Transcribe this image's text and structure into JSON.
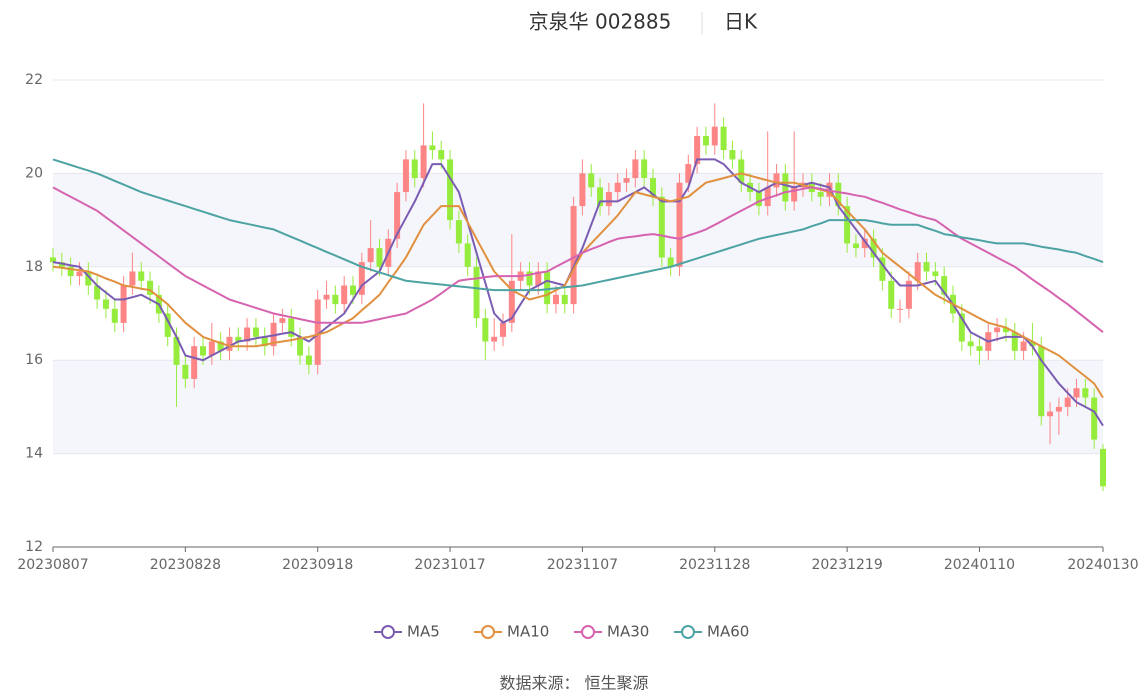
{
  "chart_data": {
    "type": "candlestick",
    "title": "京泉华 002885",
    "subtitle": "日K",
    "source": "数据来源： 恒生聚源",
    "up_color": "#fd8585",
    "down_color": "#95ec3c",
    "categories": [
      "20230807",
      null,
      null,
      null,
      null,
      null,
      null,
      null,
      null,
      null,
      null,
      null,
      null,
      null,
      null,
      "20230828",
      null,
      null,
      null,
      null,
      null,
      null,
      null,
      null,
      null,
      null,
      null,
      null,
      null,
      null,
      "20230918",
      null,
      null,
      null,
      null,
      null,
      null,
      null,
      null,
      null,
      null,
      null,
      null,
      null,
      null,
      "20231017",
      null,
      null,
      null,
      null,
      null,
      null,
      null,
      null,
      null,
      null,
      null,
      null,
      null,
      null,
      "20231107",
      null,
      null,
      null,
      null,
      null,
      null,
      null,
      null,
      null,
      null,
      null,
      null,
      null,
      null,
      "20231128",
      null,
      null,
      null,
      null,
      null,
      null,
      null,
      null,
      null,
      null,
      null,
      null,
      null,
      null,
      "20231219",
      null,
      null,
      null,
      null,
      null,
      null,
      null,
      null,
      null,
      null,
      null,
      null,
      null,
      null,
      "20240110",
      null,
      null,
      null,
      null,
      null,
      null,
      null,
      null,
      null,
      null,
      null,
      null,
      null,
      "20240130"
    ],
    "open": [
      18.2,
      18.1,
      18.0,
      17.8,
      17.9,
      17.6,
      17.3,
      17.1,
      16.8,
      17.6,
      17.9,
      17.7,
      17.4,
      17.0,
      16.5,
      15.9,
      15.6,
      16.3,
      16.1,
      16.4,
      16.2,
      16.5,
      16.4,
      16.7,
      16.5,
      16.3,
      16.8,
      16.9,
      16.5,
      16.1,
      15.9,
      17.3,
      17.4,
      17.2,
      17.6,
      17.4,
      18.1,
      18.4,
      18.0,
      18.6,
      19.6,
      20.3,
      19.9,
      20.6,
      20.5,
      20.3,
      19.0,
      18.5,
      18.0,
      16.9,
      16.4,
      16.5,
      16.8,
      17.7,
      17.9,
      17.6,
      17.9,
      17.2,
      17.4,
      17.2,
      19.3,
      20.0,
      19.7,
      19.3,
      19.6,
      19.8,
      19.9,
      20.3,
      19.9,
      19.5,
      18.2,
      18.0,
      19.8,
      20.2,
      20.8,
      20.6,
      21.0,
      20.5,
      20.3,
      19.8,
      19.6,
      19.3,
      19.7,
      20.0,
      19.4,
      19.7,
      19.8,
      19.6,
      19.5,
      19.8,
      19.3,
      18.5,
      18.4,
      18.6,
      18.2,
      17.7,
      17.1,
      17.1,
      17.7,
      18.1,
      17.9,
      17.8,
      17.4,
      17.0,
      16.4,
      16.3,
      16.2,
      16.6,
      16.7,
      16.6,
      16.2,
      16.4,
      16.3,
      14.8,
      14.9,
      15.0,
      15.2,
      15.4,
      15.2,
      14.1
    ],
    "close": [
      18.1,
      18.0,
      17.8,
      17.9,
      17.6,
      17.3,
      17.1,
      16.8,
      17.6,
      17.9,
      17.7,
      17.4,
      17.0,
      16.5,
      15.9,
      15.6,
      16.3,
      16.1,
      16.4,
      16.2,
      16.5,
      16.4,
      16.7,
      16.5,
      16.3,
      16.8,
      16.9,
      16.5,
      16.1,
      15.9,
      17.3,
      17.4,
      17.2,
      17.6,
      17.4,
      18.1,
      18.4,
      18.0,
      18.6,
      19.6,
      20.3,
      19.9,
      20.6,
      20.5,
      20.3,
      19.0,
      18.5,
      18.0,
      16.9,
      16.4,
      16.5,
      16.8,
      17.7,
      17.9,
      17.6,
      17.9,
      17.2,
      17.4,
      17.2,
      19.3,
      20.0,
      19.7,
      19.3,
      19.6,
      19.8,
      19.9,
      20.3,
      19.9,
      19.5,
      18.2,
      18.0,
      19.8,
      20.2,
      20.8,
      20.6,
      21.0,
      20.5,
      20.3,
      19.8,
      19.6,
      19.3,
      19.7,
      20.0,
      19.4,
      19.7,
      19.8,
      19.6,
      19.5,
      19.8,
      19.3,
      18.5,
      18.4,
      18.6,
      18.2,
      17.7,
      17.1,
      17.1,
      17.7,
      18.1,
      17.9,
      17.8,
      17.4,
      17.0,
      16.4,
      16.3,
      16.2,
      16.6,
      16.7,
      16.6,
      16.2,
      16.4,
      16.3,
      14.8,
      14.9,
      15.0,
      15.2,
      15.4,
      15.2,
      14.3,
      13.3
    ],
    "low": [
      17.9,
      17.8,
      17.6,
      17.6,
      17.4,
      17.1,
      16.9,
      16.6,
      16.6,
      17.4,
      17.5,
      17.2,
      16.8,
      16.3,
      15.0,
      15.4,
      15.4,
      15.9,
      15.9,
      16.0,
      16.0,
      16.2,
      16.2,
      16.3,
      16.1,
      16.1,
      16.6,
      16.3,
      15.9,
      15.7,
      15.7,
      17.1,
      17.0,
      17.0,
      17.2,
      17.2,
      17.9,
      17.8,
      17.8,
      18.4,
      19.4,
      19.7,
      19.7,
      20.3,
      20.1,
      18.8,
      18.3,
      17.8,
      16.7,
      16.0,
      16.2,
      16.3,
      16.6,
      17.5,
      17.4,
      17.4,
      17.0,
      17.0,
      17.0,
      17.0,
      19.1,
      19.5,
      19.1,
      19.1,
      19.4,
      19.6,
      19.7,
      19.7,
      19.3,
      18.0,
      17.8,
      17.8,
      19.6,
      20.0,
      20.4,
      20.4,
      20.3,
      20.1,
      19.6,
      19.4,
      19.1,
      19.1,
      19.5,
      19.2,
      19.2,
      19.5,
      19.4,
      19.3,
      19.3,
      19.1,
      18.3,
      18.2,
      18.2,
      18.0,
      17.5,
      16.9,
      16.8,
      16.9,
      17.5,
      17.7,
      17.6,
      17.2,
      16.8,
      16.2,
      16.1,
      15.9,
      16.0,
      16.4,
      16.4,
      16.0,
      16.0,
      16.1,
      14.6,
      14.2,
      14.4,
      14.8,
      15.0,
      15.0,
      14.1,
      13.2
    ],
    "high": [
      18.4,
      18.3,
      18.2,
      18.1,
      18.1,
      17.8,
      17.5,
      17.3,
      17.8,
      18.3,
      18.1,
      17.9,
      17.6,
      17.2,
      16.7,
      16.1,
      16.5,
      16.5,
      16.8,
      16.6,
      16.7,
      16.7,
      16.9,
      16.9,
      16.7,
      17.0,
      17.1,
      17.1,
      16.7,
      16.3,
      17.5,
      17.7,
      17.6,
      17.8,
      17.8,
      18.3,
      19.0,
      18.6,
      18.8,
      19.8,
      20.5,
      20.5,
      21.5,
      20.9,
      20.7,
      20.5,
      19.2,
      18.7,
      18.2,
      17.1,
      16.9,
      17.0,
      18.7,
      18.1,
      18.1,
      18.1,
      18.1,
      17.6,
      17.6,
      19.5,
      20.3,
      20.2,
      19.9,
      19.8,
      20.0,
      20.1,
      20.5,
      20.5,
      20.1,
      19.7,
      18.4,
      20.0,
      20.4,
      21.0,
      21.0,
      21.5,
      21.2,
      20.7,
      20.5,
      20.0,
      19.8,
      20.9,
      20.2,
      20.2,
      20.9,
      20.0,
      20.0,
      19.8,
      20.0,
      20.0,
      19.5,
      18.7,
      18.8,
      18.8,
      18.4,
      17.9,
      17.3,
      17.9,
      18.3,
      18.3,
      18.1,
      18.0,
      17.6,
      17.2,
      16.6,
      16.5,
      16.8,
      16.9,
      16.9,
      16.8,
      16.6,
      16.8,
      16.5,
      15.1,
      15.2,
      15.4,
      15.6,
      15.6,
      15.4,
      14.2
    ],
    "series": [
      {
        "name": "MA5",
        "color": "#7b5cb3",
        "values": [
          18.1,
          18.07,
          18.03,
          18.0,
          17.8,
          17.6,
          17.45,
          17.3,
          17.3,
          17.35,
          17.4,
          17.3,
          17.2,
          16.85,
          16.5,
          16.1,
          16.05,
          16.0,
          16.1,
          16.2,
          16.3,
          16.4,
          16.43,
          16.47,
          16.5,
          16.53,
          16.57,
          16.6,
          16.5,
          16.4,
          16.55,
          16.7,
          16.85,
          17.0,
          17.3,
          17.6,
          17.75,
          17.9,
          18.3,
          18.7,
          19.05,
          19.4,
          19.8,
          20.2,
          20.2,
          19.9,
          19.6,
          18.95,
          18.3,
          17.65,
          17.0,
          16.8,
          16.9,
          17.2,
          17.5,
          17.6,
          17.7,
          17.65,
          17.6,
          18.0,
          18.4,
          18.9,
          19.4,
          19.4,
          19.4,
          19.5,
          19.6,
          19.7,
          19.55,
          19.4,
          19.4,
          19.4,
          19.7,
          20.3,
          20.3,
          20.3,
          20.2,
          20.0,
          19.8,
          19.7,
          19.6,
          19.7,
          19.8,
          19.75,
          19.7,
          19.75,
          19.8,
          19.75,
          19.7,
          19.3,
          19.05,
          18.8,
          18.55,
          18.3,
          18.05,
          17.8,
          17.6,
          17.6,
          17.6,
          17.65,
          17.7,
          17.45,
          17.2,
          16.9,
          16.6,
          16.5,
          16.4,
          16.45,
          16.5,
          16.5,
          16.5,
          16.3,
          16.0,
          15.75,
          15.5,
          15.3,
          15.1,
          15.0,
          14.9,
          14.6
        ]
      },
      {
        "name": "MA10",
        "color": "#e0903f",
        "values": [
          18.0,
          17.98,
          17.95,
          17.93,
          17.9,
          17.83,
          17.75,
          17.68,
          17.6,
          17.57,
          17.53,
          17.5,
          17.35,
          17.2,
          17.0,
          16.8,
          16.65,
          16.5,
          16.43,
          16.37,
          16.3,
          16.3,
          16.3,
          16.3,
          16.33,
          16.37,
          16.4,
          16.43,
          16.47,
          16.5,
          16.55,
          16.6,
          16.7,
          16.8,
          16.9,
          17.07,
          17.23,
          17.4,
          17.67,
          17.93,
          18.2,
          18.55,
          18.9,
          19.1,
          19.3,
          19.3,
          19.3,
          18.95,
          18.6,
          18.25,
          17.9,
          17.7,
          17.5,
          17.4,
          17.3,
          17.35,
          17.4,
          17.5,
          17.6,
          17.95,
          18.3,
          18.5,
          18.7,
          18.9,
          19.1,
          19.35,
          19.6,
          19.55,
          19.5,
          19.45,
          19.4,
          19.45,
          19.5,
          19.65,
          19.8,
          19.85,
          19.9,
          19.95,
          20.0,
          19.95,
          19.9,
          19.85,
          19.8,
          19.8,
          19.8,
          19.75,
          19.7,
          19.65,
          19.6,
          19.4,
          19.2,
          19.0,
          18.8,
          18.55,
          18.3,
          18.15,
          18.0,
          17.85,
          17.7,
          17.55,
          17.4,
          17.3,
          17.2,
          17.1,
          17.0,
          16.9,
          16.8,
          16.75,
          16.7,
          16.6,
          16.5,
          16.4,
          16.3,
          16.2,
          16.1,
          15.95,
          15.8,
          15.65,
          15.5,
          15.2
        ]
      },
      {
        "name": "MA30",
        "color": "#d663b0",
        "values": [
          19.7,
          19.6,
          19.5,
          19.4,
          19.3,
          19.2,
          19.06,
          18.92,
          18.78,
          18.64,
          18.5,
          18.36,
          18.22,
          18.08,
          17.94,
          17.8,
          17.7,
          17.6,
          17.5,
          17.4,
          17.3,
          17.24,
          17.18,
          17.12,
          17.06,
          17.0,
          16.96,
          16.92,
          16.88,
          16.84,
          16.8,
          16.8,
          16.8,
          16.8,
          16.8,
          16.8,
          16.84,
          16.88,
          16.92,
          16.96,
          17.0,
          17.1,
          17.2,
          17.3,
          17.43,
          17.57,
          17.7,
          17.73,
          17.75,
          17.78,
          17.8,
          17.8,
          17.8,
          17.8,
          17.83,
          17.87,
          17.9,
          18.0,
          18.1,
          18.2,
          18.3,
          18.38,
          18.45,
          18.53,
          18.6,
          18.63,
          18.65,
          18.68,
          18.7,
          18.67,
          18.63,
          18.6,
          18.67,
          18.73,
          18.8,
          18.9,
          19.0,
          19.1,
          19.2,
          19.3,
          19.4,
          19.47,
          19.53,
          19.6,
          19.63,
          19.67,
          19.7,
          19.67,
          19.63,
          19.6,
          19.57,
          19.53,
          19.5,
          19.43,
          19.37,
          19.3,
          19.23,
          19.17,
          19.1,
          19.05,
          19.0,
          18.87,
          18.73,
          18.6,
          18.5,
          18.4,
          18.3,
          18.2,
          18.1,
          18.0,
          17.87,
          17.73,
          17.6,
          17.47,
          17.33,
          17.2,
          17.05,
          16.9,
          16.75,
          16.6
        ]
      },
      {
        "name": "MA60",
        "color": "#4da3a3",
        "values": [
          20.3,
          20.24,
          20.18,
          20.12,
          20.06,
          20.0,
          19.92,
          19.84,
          19.76,
          19.68,
          19.6,
          19.54,
          19.48,
          19.42,
          19.36,
          19.3,
          19.24,
          19.18,
          19.12,
          19.06,
          19.0,
          18.96,
          18.92,
          18.88,
          18.84,
          18.8,
          18.72,
          18.64,
          18.56,
          18.48,
          18.4,
          18.32,
          18.24,
          18.16,
          18.08,
          18.0,
          17.94,
          17.88,
          17.82,
          17.76,
          17.7,
          17.68,
          17.66,
          17.64,
          17.62,
          17.6,
          17.58,
          17.56,
          17.54,
          17.52,
          17.5,
          17.5,
          17.5,
          17.5,
          17.5,
          17.5,
          17.52,
          17.54,
          17.56,
          17.58,
          17.6,
          17.64,
          17.68,
          17.72,
          17.76,
          17.8,
          17.84,
          17.88,
          17.92,
          17.96,
          18.0,
          18.06,
          18.12,
          18.18,
          18.24,
          18.3,
          18.36,
          18.42,
          18.48,
          18.54,
          18.6,
          18.64,
          18.68,
          18.72,
          18.76,
          18.8,
          18.87,
          18.93,
          19.0,
          19.0,
          19.0,
          19.0,
          19.0,
          18.97,
          18.93,
          18.9,
          18.9,
          18.9,
          18.9,
          18.83,
          18.77,
          18.7,
          18.67,
          18.63,
          18.6,
          18.57,
          18.53,
          18.5,
          18.5,
          18.5,
          18.5,
          18.47,
          18.43,
          18.4,
          18.37,
          18.33,
          18.3,
          18.23,
          18.17,
          18.1
        ]
      }
    ],
    "ylim": [
      12,
      22
    ],
    "yticks": [
      12,
      14,
      16,
      18,
      20,
      22
    ],
    "grid": true
  }
}
